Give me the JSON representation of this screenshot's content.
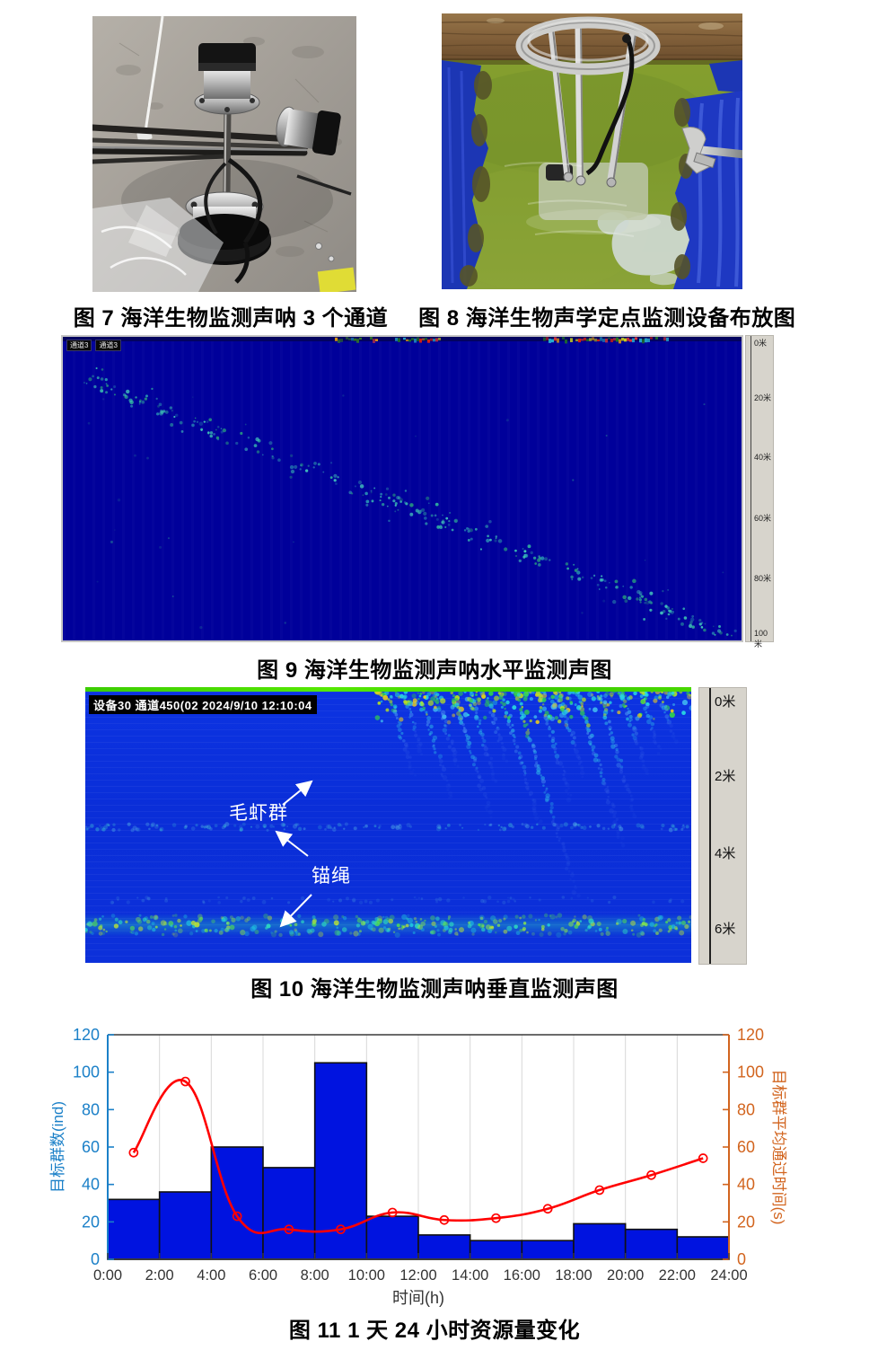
{
  "captions": {
    "fig7": "图 7 海洋生物监测声呐 3 个通道",
    "fig8": "图 8 海洋生物声学定点监测设备布放图",
    "fig9": "图 9 海洋生物监测声呐水平监测声图",
    "fig10": "图 10 海洋生物监测声呐垂直监测声图",
    "fig11": "图 11 1 天 24 小时资源量变化"
  },
  "sonar_horizontal": {
    "tabs": [
      "通道3",
      "通道3"
    ],
    "depth_labels": [
      "0米",
      "20米",
      "40米",
      "60米",
      "80米",
      "100米"
    ]
  },
  "sonar_vertical": {
    "header": "设备30 通道450(02 2024/9/10 12:10:04",
    "depth_labels": [
      "0米",
      "2米",
      "4米",
      "6米"
    ],
    "annotation_swarm": "毛虾群",
    "annotation_rope": "锚绳"
  },
  "chart_data": {
    "type": "bar+line",
    "title": "",
    "xlabel": "时间(h)",
    "ylabel_left": "目标群数(ind)",
    "ylabel_right": "目标群平均通过时间(s)",
    "ylim": [
      0,
      120
    ],
    "x_ticks": [
      "0:00",
      "2:00",
      "4:00",
      "6:00",
      "8:00",
      "10:00",
      "12:00",
      "14:00",
      "16:00",
      "18:00",
      "20:00",
      "22:00",
      "24:00"
    ],
    "y_ticks": [
      0,
      20,
      40,
      60,
      80,
      100,
      120
    ],
    "grid": "vertical-only",
    "bars": {
      "name": "目标群数",
      "bins_hours": [
        [
          0,
          2
        ],
        [
          2,
          4
        ],
        [
          4,
          6
        ],
        [
          6,
          8
        ],
        [
          8,
          10
        ],
        [
          10,
          12
        ],
        [
          12,
          14
        ],
        [
          14,
          16
        ],
        [
          16,
          18
        ],
        [
          18,
          20
        ],
        [
          20,
          22
        ],
        [
          22,
          24
        ]
      ],
      "values": [
        32,
        36,
        60,
        49,
        105,
        23,
        13,
        10,
        10,
        19,
        16,
        12
      ]
    },
    "line": {
      "name": "目标群平均通过时间",
      "x_hours": [
        1,
        3,
        5,
        7,
        9,
        11,
        13,
        15,
        17,
        19,
        21,
        23
      ],
      "values": [
        57,
        95,
        23,
        16,
        16,
        25,
        21,
        22,
        27,
        37,
        45,
        54
      ]
    },
    "colors": {
      "bar": "#0013e0",
      "bar_edge": "#111111",
      "line": "#ff0000",
      "left_axis": "#1b80c8",
      "right_axis": "#d2641e",
      "grid": "#d8d8d8",
      "frame": "#3a3a3a"
    }
  }
}
